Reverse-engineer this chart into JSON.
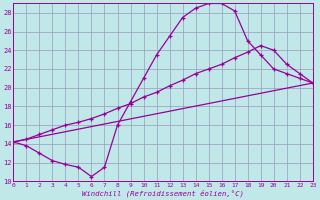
{
  "xlabel": "Windchill (Refroidissement éolien,°C)",
  "bg_color": "#c0e8e8",
  "line_color": "#990099",
  "grid_color": "#9999bb",
  "xlim": [
    0,
    23
  ],
  "ylim": [
    10,
    29
  ],
  "yticks": [
    10,
    12,
    14,
    16,
    18,
    20,
    22,
    24,
    26,
    28
  ],
  "xticks": [
    0,
    1,
    2,
    3,
    4,
    5,
    6,
    7,
    8,
    9,
    10,
    11,
    12,
    13,
    14,
    15,
    16,
    17,
    18,
    19,
    20,
    21,
    22,
    23
  ],
  "curve1_x": [
    0,
    1,
    2,
    3,
    4,
    5,
    6,
    7,
    8,
    9,
    10,
    11,
    12,
    13,
    14,
    15,
    16,
    17,
    18,
    19,
    20,
    21,
    22,
    23
  ],
  "curve1_y": [
    14.2,
    13.8,
    13.0,
    12.2,
    11.8,
    11.5,
    10.5,
    11.5,
    16.0,
    18.5,
    21.0,
    23.5,
    25.5,
    27.5,
    28.5,
    29.0,
    29.0,
    28.2,
    25.0,
    23.5,
    22.0,
    21.5,
    21.0,
    20.5
  ],
  "curve2_x": [
    0,
    1,
    2,
    3,
    4,
    5,
    6,
    7,
    8,
    9,
    10,
    11,
    12,
    13,
    14,
    15,
    16,
    17,
    18,
    19,
    20,
    21,
    22,
    23
  ],
  "curve2_y": [
    14.2,
    14.5,
    15.0,
    15.5,
    16.0,
    16.3,
    16.7,
    17.2,
    17.8,
    18.3,
    19.0,
    19.5,
    20.2,
    20.8,
    21.5,
    22.0,
    22.5,
    23.2,
    23.8,
    24.5,
    24.0,
    22.5,
    21.5,
    20.5
  ],
  "line3_x": [
    0,
    23
  ],
  "line3_y": [
    14.2,
    20.5
  ]
}
